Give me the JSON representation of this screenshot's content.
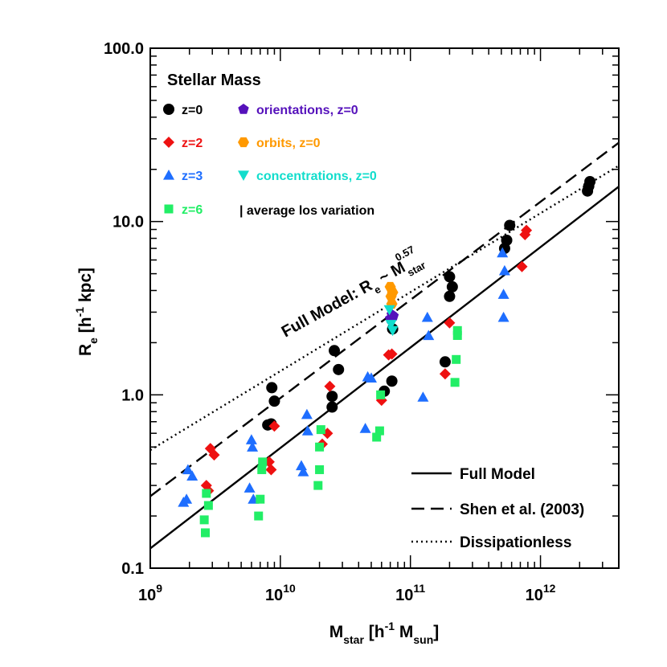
{
  "chart_data": {
    "type": "scatter",
    "title": "Stellar Mass",
    "xlabel": {
      "main": "M",
      "sub1": "star",
      "mid": " [h",
      "sup": "-1",
      "mid2": " M",
      "sub2": "sun",
      "tail": "]"
    },
    "ylabel": {
      "main": "R",
      "sub": "e",
      "mid": " [h",
      "sup": "-1",
      "tail": " kpc]"
    },
    "x_scale": "log",
    "y_scale": "log",
    "xlim": [
      1000000000,
      4000000000000
    ],
    "ylim": [
      0.1,
      100
    ],
    "x_ticks": [
      {
        "value": 1000000000,
        "base": "10",
        "exp": "9"
      },
      {
        "value": 10000000000,
        "base": "10",
        "exp": "10"
      },
      {
        "value": 100000000000,
        "base": "10",
        "exp": "11"
      },
      {
        "value": 1000000000000,
        "base": "10",
        "exp": "12"
      }
    ],
    "y_ticks": [
      {
        "value": 0.1,
        "label": "0.1"
      },
      {
        "value": 1,
        "label": "1.0"
      },
      {
        "value": 10,
        "label": "10.0"
      },
      {
        "value": 100,
        "label": "100.0"
      }
    ],
    "grid": false,
    "annotation": {
      "text": "Full Model: R",
      "sub": "e",
      "mid": " ~ M",
      "sub2": "star",
      "sup": "0.57"
    },
    "series": [
      {
        "name": "z=0",
        "color": "#000000",
        "marker": "circle",
        "points": [
          [
            8000000000.0,
            0.67
          ],
          [
            8500000000.0,
            0.68
          ],
          [
            8600000000.0,
            1.1
          ],
          [
            9000000000.0,
            0.92
          ],
          [
            25000000000.0,
            0.85
          ],
          [
            25000000000.0,
            0.98
          ],
          [
            26000000000.0,
            1.8
          ],
          [
            28000000000.0,
            1.4
          ],
          [
            63000000000.0,
            1.05
          ],
          [
            72000000000.0,
            1.2
          ],
          [
            73000000000.0,
            2.4
          ],
          [
            185000000000.0,
            1.55
          ],
          [
            200000000000.0,
            4.8
          ],
          [
            200000000000.0,
            3.7
          ],
          [
            210000000000.0,
            4.2
          ],
          [
            530000000000.0,
            7.0
          ],
          [
            550000000000.0,
            7.8
          ],
          [
            580000000000.0,
            9.5
          ],
          [
            2300000000000.0,
            15.0
          ],
          [
            2350000000000.0,
            16.0
          ],
          [
            2400000000000.0,
            17.0
          ]
        ]
      },
      {
        "name": "z=2",
        "color": "#ee1111",
        "marker": "diamond",
        "points": [
          [
            2700000000.0,
            0.3
          ],
          [
            2800000000.0,
            0.28
          ],
          [
            2900000000.0,
            0.49
          ],
          [
            3100000000.0,
            0.45
          ],
          [
            8200000000.0,
            0.41
          ],
          [
            8500000000.0,
            0.37
          ],
          [
            9000000000.0,
            0.66
          ],
          [
            21000000000.0,
            0.52
          ],
          [
            23000000000.0,
            0.6
          ],
          [
            24000000000.0,
            1.12
          ],
          [
            60000000000.0,
            0.93
          ],
          [
            68000000000.0,
            1.7
          ],
          [
            72000000000.0,
            1.72
          ],
          [
            185000000000.0,
            1.32
          ],
          [
            200000000000.0,
            2.6
          ],
          [
            720000000000.0,
            5.5
          ],
          [
            760000000000.0,
            8.4
          ],
          [
            780000000000.0,
            8.9
          ]
        ]
      },
      {
        "name": "z=3",
        "color": "#1e6eff",
        "marker": "triangle-up",
        "points": [
          [
            1800000000.0,
            0.24
          ],
          [
            1900000000.0,
            0.25
          ],
          [
            1950000000.0,
            0.37
          ],
          [
            2100000000.0,
            0.34
          ],
          [
            5800000000.0,
            0.29
          ],
          [
            6000000000.0,
            0.55
          ],
          [
            6100000000.0,
            0.5
          ],
          [
            6200000000.0,
            0.25
          ],
          [
            14500000000.0,
            0.39
          ],
          [
            15000000000.0,
            0.36
          ],
          [
            16000000000.0,
            0.77
          ],
          [
            16200000000.0,
            0.62
          ],
          [
            45000000000.0,
            0.64
          ],
          [
            47000000000.0,
            1.27
          ],
          [
            50000000000.0,
            1.25
          ],
          [
            125000000000.0,
            0.97
          ],
          [
            135000000000.0,
            2.8
          ],
          [
            138000000000.0,
            2.2
          ],
          [
            510000000000.0,
            6.6
          ],
          [
            520000000000.0,
            3.8
          ],
          [
            520000000000.0,
            2.8
          ],
          [
            530000000000.0,
            5.2
          ]
        ]
      },
      {
        "name": "z=6",
        "color": "#22ee66",
        "marker": "square",
        "points": [
          [
            2600000000.0,
            0.19
          ],
          [
            2650000000.0,
            0.16
          ],
          [
            2700000000.0,
            0.27
          ],
          [
            2800000000.0,
            0.23
          ],
          [
            6800000000.0,
            0.2
          ],
          [
            7000000000.0,
            0.25
          ],
          [
            7200000000.0,
            0.37
          ],
          [
            7300000000.0,
            0.41
          ],
          [
            19500000000.0,
            0.3
          ],
          [
            20000000000.0,
            0.37
          ],
          [
            20000000000.0,
            0.5
          ],
          [
            20500000000.0,
            0.63
          ],
          [
            55000000000.0,
            0.57
          ],
          [
            58000000000.0,
            0.62
          ],
          [
            59000000000.0,
            1.0
          ],
          [
            220000000000.0,
            1.18
          ],
          [
            225000000000.0,
            1.6
          ],
          [
            230000000000.0,
            2.2
          ],
          [
            230000000000.0,
            2.35
          ]
        ]
      },
      {
        "name": "orientations, z=0",
        "color": "#5511bb",
        "marker": "pentagon",
        "points": [
          [
            70000000000.0,
            2.75
          ],
          [
            72000000000.0,
            2.9
          ],
          [
            74000000000.0,
            2.85
          ]
        ]
      },
      {
        "name": "orbits, z=0",
        "color": "#ff9900",
        "marker": "hexagon",
        "points": [
          [
            70000000000.0,
            4.2
          ],
          [
            71000000000.0,
            3.7
          ],
          [
            72000000000.0,
            3.35
          ],
          [
            73000000000.0,
            3.9
          ]
        ]
      },
      {
        "name": "concentrations, z=0",
        "color": "#11ddcc",
        "marker": "triangle-down",
        "points": [
          [
            69000000000.0,
            3.1
          ],
          [
            71000000000.0,
            2.55
          ],
          [
            73000000000.0,
            2.35
          ]
        ]
      }
    ],
    "losnote": "| average los variation",
    "lines": [
      {
        "name": "Full Model",
        "style": "solid",
        "x": [
          1000000000,
          4000000000000
        ],
        "y": [
          0.13,
          15.9
        ]
      },
      {
        "name": "Shen et al. (2003)",
        "style": "dashed",
        "x": [
          1000000000,
          4000000000000
        ],
        "y": [
          0.26,
          28.5
        ]
      },
      {
        "name": "Dissipationless",
        "style": "dotted",
        "x": [
          1000000000,
          4000000000000
        ],
        "y": [
          0.48,
          21.0
        ]
      }
    ]
  }
}
